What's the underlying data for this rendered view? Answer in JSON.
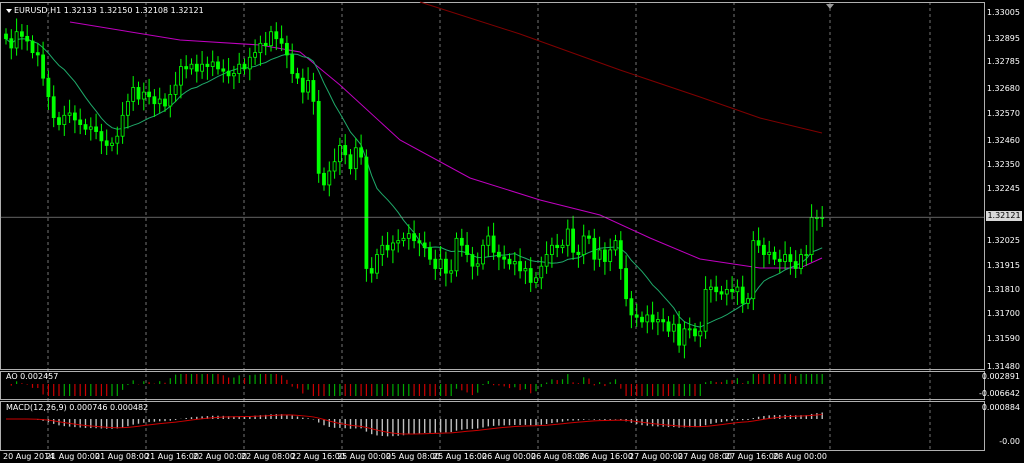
{
  "window": {
    "title": "EURUSD,H1",
    "ohlc": "1.32133 1.32150 1.32108 1.32121"
  },
  "price_axis": {
    "ticks": [
      "1.33005",
      "1.32895",
      "1.32785",
      "1.32680",
      "1.32570",
      "1.32460",
      "1.32350",
      "1.32245",
      "1.32025",
      "1.31915",
      "1.31810",
      "1.31700",
      "1.31590",
      "1.31480"
    ],
    "current": "1.32121"
  },
  "ao_panel": {
    "label": "AO 0.002457",
    "ticks": [
      "0.002891",
      "-0.006642"
    ]
  },
  "macd_panel": {
    "label": "MACD(12,26,9) 0.000746 0.000482",
    "ticks": [
      "0.000884",
      "-0.00"
    ]
  },
  "time_axis": [
    "20 Aug 2014",
    "21 Aug 00:00",
    "21 Aug 08:00",
    "21 Aug 16:00",
    "22 Aug 00:00",
    "22 Aug 08:00",
    "22 Aug 16:00",
    "25 Aug 00:00",
    "25 Aug 08:00",
    "25 Aug 16:00",
    "26 Aug 00:00",
    "26 Aug 08:00",
    "26 Aug 16:00",
    "27 Aug 00:00",
    "27 Aug 08:00",
    "27 Aug 16:00",
    "28 Aug 00:00"
  ],
  "colors": {
    "background": "#000000",
    "grid": "#c0c0c0",
    "candle": "#00ff00",
    "ma_fast": "#1faa6a",
    "ma_mid": "#c000c0",
    "ma_slow": "#800000",
    "ao_up": "#00aa00",
    "ao_down": "#cc0000",
    "macd_hist": "#c0c0c0",
    "macd_signal": "#cc0000"
  },
  "chart_data": {
    "type": "candlestick",
    "symbol": "EURUSD",
    "timeframe": "H1",
    "ylim": [
      1.3148,
      1.3306
    ],
    "candles_close": [
      1.3289,
      1.3285,
      1.3292,
      1.329,
      1.3288,
      1.3283,
      1.3282,
      1.3272,
      1.3264,
      1.3255,
      1.3252,
      1.3256,
      1.3257,
      1.3254,
      1.3252,
      1.325,
      1.3251,
      1.3249,
      1.3245,
      1.3243,
      1.3244,
      1.3247,
      1.3256,
      1.3262,
      1.3268,
      1.3263,
      1.3266,
      1.3264,
      1.3261,
      1.3263,
      1.326,
      1.3265,
      1.3269,
      1.3277,
      1.3276,
      1.3278,
      1.3275,
      1.3278,
      1.3277,
      1.3279,
      1.3276,
      1.3275,
      1.3273,
      1.3274,
      1.3278,
      1.3276,
      1.3281,
      1.3283,
      1.3287,
      1.3286,
      1.3292,
      1.3289,
      1.3287,
      1.3282,
      1.3274,
      1.3272,
      1.3266,
      1.3271,
      1.3262,
      1.3231,
      1.3226,
      1.3232,
      1.3236,
      1.3243,
      1.3239,
      1.3233,
      1.3242,
      1.3238,
      1.319,
      1.3188,
      1.3196,
      1.32,
      1.3198,
      1.3201,
      1.3202,
      1.3203,
      1.3205,
      1.3202,
      1.3201,
      1.3199,
      1.3194,
      1.319,
      1.3194,
      1.3188,
      1.3189,
      1.3203,
      1.32,
      1.3196,
      1.3191,
      1.3192,
      1.32,
      1.3204,
      1.3197,
      1.3195,
      1.3194,
      1.3192,
      1.3193,
      1.3189,
      1.319,
      1.3184,
      1.3186,
      1.3191,
      1.3196,
      1.32,
      1.3199,
      1.32,
      1.3207,
      1.3197,
      1.3196,
      1.3204,
      1.3203,
      1.3194,
      1.3198,
      1.3193,
      1.3198,
      1.3202,
      1.319,
      1.3177,
      1.317,
      1.3169,
      1.3167,
      1.317,
      1.3167,
      1.3168,
      1.3167,
      1.3163,
      1.3166,
      1.3157,
      1.3164,
      1.3164,
      1.3161,
      1.3163,
      1.3181,
      1.3182,
      1.318,
      1.3179,
      1.3181,
      1.318,
      1.3182,
      1.3175,
      1.3177,
      1.3202,
      1.32,
      1.3196,
      1.3197,
      1.3194,
      1.3193,
      1.3196,
      1.3193,
      1.319,
      1.3196,
      1.3196,
      1.3212,
      1.3212,
      1.3212
    ]
  }
}
